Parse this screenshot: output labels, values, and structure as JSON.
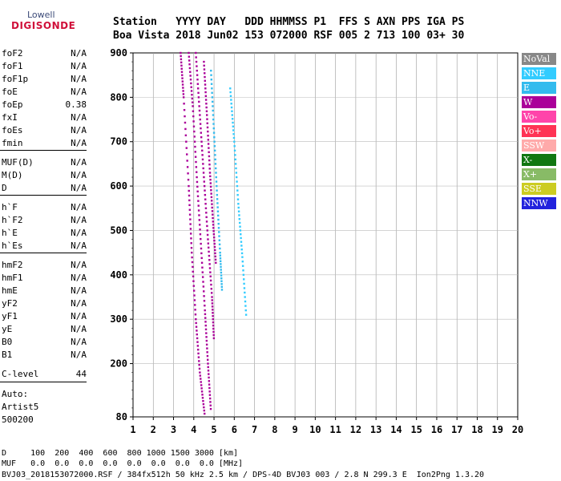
{
  "logo": {
    "line1": "Lowell",
    "line2": "DIGISONDE"
  },
  "header": {
    "line1": "Station   YYYY DAY   DDD HHMMSS P1  FFS S AXN PPS IGA PS",
    "line2": "Boa Vista 2018 Jun02 153 072000 RSF 005 2 713 100 03+ 30"
  },
  "params": [
    {
      "name": "foF2",
      "value": "N/A"
    },
    {
      "name": "foF1",
      "value": "N/A"
    },
    {
      "name": "foF1p",
      "value": "N/A"
    },
    {
      "name": "foE",
      "value": "N/A"
    },
    {
      "name": "foEp",
      "value": "0.38"
    },
    {
      "name": "fxI",
      "value": "N/A"
    },
    {
      "name": "foEs",
      "value": "N/A"
    },
    {
      "name": "fmin",
      "value": "N/A"
    },
    {
      "name": "MUF(D)",
      "value": "N/A"
    },
    {
      "name": "M(D)",
      "value": "N/A"
    },
    {
      "name": "D",
      "value": "N/A"
    },
    {
      "name": "h`F",
      "value": "N/A"
    },
    {
      "name": "h`F2",
      "value": "N/A"
    },
    {
      "name": "h`E",
      "value": "N/A"
    },
    {
      "name": "h`Es",
      "value": "N/A"
    },
    {
      "name": "hmF2",
      "value": "N/A"
    },
    {
      "name": "hmF1",
      "value": "N/A"
    },
    {
      "name": "hmE",
      "value": "N/A"
    },
    {
      "name": "yF2",
      "value": "N/A"
    },
    {
      "name": "yF1",
      "value": "N/A"
    },
    {
      "name": "yE",
      "value": "N/A"
    },
    {
      "name": "B0",
      "value": "N/A"
    },
    {
      "name": "B1",
      "value": "N/A"
    }
  ],
  "clevel": {
    "name": "C-level",
    "value": "44"
  },
  "auto": {
    "line1": "Auto:",
    "line2": "Artist5",
    "line3": "500200"
  },
  "legend": [
    {
      "label": "NoVal",
      "color": "#888888"
    },
    {
      "label": "NNE",
      "color": "#33ccff"
    },
    {
      "label": "E",
      "color": "#33bbee"
    },
    {
      "label": "W",
      "color": "#aa0099"
    },
    {
      "label": "Vo-",
      "color": "#ff44aa"
    },
    {
      "label": "Vo+",
      "color": "#ff3355"
    },
    {
      "label": "SSW",
      "color": "#ffaaaa"
    },
    {
      "label": "X-",
      "color": "#117711"
    },
    {
      "label": "X+",
      "color": "#88bb66"
    },
    {
      "label": "SSE",
      "color": "#cccc22"
    },
    {
      "label": "NNW",
      "color": "#2222dd"
    }
  ],
  "mufTable": {
    "dRow": "D     100  200  400  600  800 1000 1500 3000 [km]",
    "mufRow": "MUF   0.0  0.0  0.0  0.0  0.0  0.0  0.0  0.0 [MHz]"
  },
  "footer": "BVJ03_2018153072000.RSF / 384fx512h 50 kHz 2.5 km / DPS-4D BVJ03 003 / 2.8 N 299.3 E  Ion2Png 1.3.20",
  "chart_data": {
    "type": "scatter",
    "x_axis": {
      "range": [
        1,
        20
      ],
      "ticks": [
        1,
        2,
        3,
        4,
        5,
        6,
        7,
        8,
        9,
        10,
        11,
        12,
        13,
        14,
        15,
        16,
        17,
        18,
        19,
        20
      ]
    },
    "y_axis": {
      "range": [
        80,
        900
      ],
      "ticks": [
        80,
        200,
        300,
        400,
        500,
        600,
        700,
        800,
        900
      ]
    },
    "grid": true,
    "legend_position": "right",
    "traces": [
      {
        "color": "#aa0099",
        "points": [
          [
            3.35,
            900
          ],
          [
            3.5,
            800
          ],
          [
            3.75,
            600
          ],
          [
            3.9,
            450
          ],
          [
            4.1,
            300
          ],
          [
            4.3,
            180
          ],
          [
            4.55,
            80
          ]
        ]
      },
      {
        "color": "#aa0099",
        "points": [
          [
            3.75,
            900
          ],
          [
            3.95,
            780
          ],
          [
            4.15,
            620
          ],
          [
            4.35,
            470
          ],
          [
            4.55,
            320
          ],
          [
            4.7,
            200
          ],
          [
            4.85,
            90
          ]
        ]
      },
      {
        "color": "#aa0099",
        "points": [
          [
            4.1,
            900
          ],
          [
            4.3,
            760
          ],
          [
            4.5,
            620
          ],
          [
            4.7,
            480
          ],
          [
            4.9,
            350
          ],
          [
            5.0,
            250
          ]
        ]
      },
      {
        "color": "#aa0099",
        "points": [
          [
            4.5,
            880
          ],
          [
            4.65,
            760
          ],
          [
            4.8,
            630
          ],
          [
            4.95,
            520
          ],
          [
            5.1,
            420
          ]
        ]
      },
      {
        "color": "#33bbee",
        "points": [
          [
            4.85,
            860
          ],
          [
            5.0,
            720
          ],
          [
            5.15,
            580
          ],
          [
            5.3,
            450
          ],
          [
            5.4,
            360
          ]
        ]
      },
      {
        "color": "#33ccff",
        "points": [
          [
            5.8,
            820
          ],
          [
            6.0,
            700
          ],
          [
            6.2,
            560
          ],
          [
            6.4,
            440
          ],
          [
            6.6,
            300
          ]
        ]
      }
    ]
  }
}
